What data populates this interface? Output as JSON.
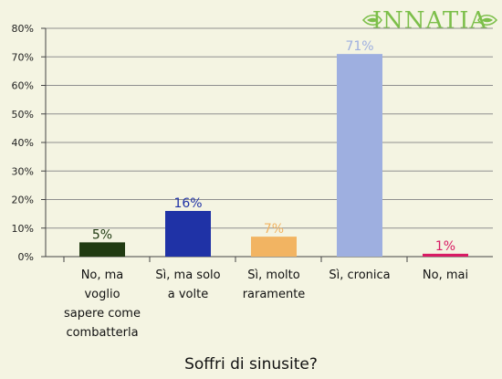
{
  "logo": {
    "text": "INNATIA",
    "color": "#7cbf4a"
  },
  "chart_data": {
    "type": "bar",
    "title": "Soffri di sinusite?",
    "xlabel": "",
    "ylabel": "",
    "ylim": [
      0,
      80
    ],
    "yticks": [
      0,
      10,
      20,
      30,
      40,
      50,
      60,
      70,
      80
    ],
    "ytick_suffix": "%",
    "grid": true,
    "categories": [
      [
        "No, ma",
        "voglio",
        "sapere come",
        "combatterla"
      ],
      [
        "Sì, ma solo",
        "a volte"
      ],
      [
        "Sì, molto",
        "raramente"
      ],
      [
        "Sì, cronica"
      ],
      [
        "No, mai"
      ]
    ],
    "values": [
      5,
      16,
      7,
      71,
      1
    ],
    "value_labels": [
      "5%",
      "16%",
      "7%",
      "71%",
      "1%"
    ],
    "colors": [
      "#213b12",
      "#1f32a6",
      "#f2b462",
      "#9eafe0",
      "#d81b64"
    ]
  }
}
